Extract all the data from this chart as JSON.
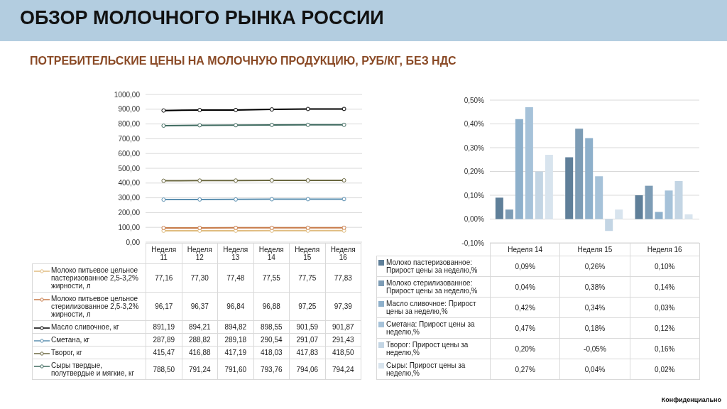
{
  "chart_data": [
    {
      "type": "line",
      "title": "ОБЗОР МОЛОЧНОГО РЫНКА РОССИИ",
      "subtitle": "ПОТРЕБИТЕЛЬСКИЕ ЦЕНЫ НА МОЛОЧНУЮ ПРОДУКЦИЮ, РУБ/КГ, БЕЗ НДС",
      "categories": [
        "Неделя 11",
        "Неделя 12",
        "Неделя 13",
        "Неделя 14",
        "Неделя 15",
        "Неделя 16"
      ],
      "series": [
        {
          "name": "Молоко питьевое цельное пастеризованное 2,5-3,2% жирности, л",
          "color": "#e0bc80",
          "values": [
            77.16,
            77.3,
            77.48,
            77.55,
            77.75,
            77.83
          ],
          "value_labels": [
            "77,16",
            "77,30",
            "77,48",
            "77,55",
            "77,75",
            "77,83"
          ]
        },
        {
          "name": "Молоко питьевое цельное стерилизованное 2,5-3,2% жирности, л",
          "color": "#c77a48",
          "values": [
            96.17,
            96.37,
            96.84,
            96.88,
            97.25,
            97.39
          ],
          "value_labels": [
            "96,17",
            "96,37",
            "96,84",
            "96,88",
            "97,25",
            "97,39"
          ]
        },
        {
          "name": "Масло сливочное, кг",
          "color": "#000000",
          "values": [
            891.19,
            894.21,
            894.82,
            898.55,
            901.59,
            901.87
          ],
          "value_labels": [
            "891,19",
            "894,21",
            "894,82",
            "898,55",
            "901,59",
            "901,87"
          ]
        },
        {
          "name": "Сметана, кг",
          "color": "#5b8fb0",
          "values": [
            287.89,
            288.82,
            289.18,
            290.54,
            291.07,
            291.43
          ],
          "value_labels": [
            "287,89",
            "288,82",
            "289,18",
            "290,54",
            "291,07",
            "291,43"
          ]
        },
        {
          "name": "Творог, кг",
          "color": "#6b6840",
          "values": [
            415.47,
            416.88,
            417.19,
            418.03,
            417.83,
            418.5
          ],
          "value_labels": [
            "415,47",
            "416,88",
            "417,19",
            "418,03",
            "417,83",
            "418,50"
          ]
        },
        {
          "name": "Сыры твердые, полутвердые и мягкие, кг",
          "color": "#3f6b60",
          "values": [
            788.5,
            791.24,
            791.6,
            793.76,
            794.06,
            794.24
          ],
          "value_labels": [
            "788,50",
            "791,24",
            "791,60",
            "793,76",
            "794,06",
            "794,24"
          ]
        }
      ],
      "ylim": [
        0,
        1000
      ],
      "yticks": [
        {
          "value": 0,
          "label": "0,00"
        },
        {
          "value": 100,
          "label": "100,00"
        },
        {
          "value": 200,
          "label": "200,00"
        },
        {
          "value": 300,
          "label": "300,00"
        },
        {
          "value": 400,
          "label": "400,00"
        },
        {
          "value": 500,
          "label": "500,00"
        },
        {
          "value": 600,
          "label": "600,00"
        },
        {
          "value": 700,
          "label": "700,00"
        },
        {
          "value": 800,
          "label": "800,00"
        },
        {
          "value": 900,
          "label": "900,00"
        },
        {
          "value": 1000,
          "label": "1000,00"
        }
      ],
      "grid": "y",
      "marker": "circle",
      "legend": "bottom"
    },
    {
      "type": "bar",
      "categories": [
        "Неделя 14",
        "Неделя 15",
        "Неделя 16"
      ],
      "series": [
        {
          "name": "Молоко пастеризованное: Прирост цены за неделю,%",
          "color": "#5f7f99",
          "values": [
            0.09,
            0.26,
            0.1
          ],
          "value_labels": [
            "0,09%",
            "0,26%",
            "0,10%"
          ]
        },
        {
          "name": "Молоко стерилизованное: Прирост цены за неделю,%",
          "color": "#7d9cb5",
          "values": [
            0.04,
            0.38,
            0.14
          ],
          "value_labels": [
            "0,04%",
            "0,38%",
            "0,14%"
          ]
        },
        {
          "name": "Масло сливочное: Прирост цены за неделю,%",
          "color": "#8eb0cb",
          "values": [
            0.42,
            0.34,
            0.03
          ],
          "value_labels": [
            "0,42%",
            "0,34%",
            "0,03%"
          ]
        },
        {
          "name": "Сметана: Прирост цены за неделю,%",
          "color": "#a6c2d9",
          "values": [
            0.47,
            0.18,
            0.12
          ],
          "value_labels": [
            "0,47%",
            "0,18%",
            "0,12%"
          ]
        },
        {
          "name": "Творог: Прирост цены за неделю,%",
          "color": "#c3d5e4",
          "values": [
            0.2,
            -0.05,
            0.16
          ],
          "value_labels": [
            "0,20%",
            "-0,05%",
            "0,16%"
          ]
        },
        {
          "name": "Сыры: Прирост цены за неделю,%",
          "color": "#d8e4ee",
          "values": [
            0.27,
            0.04,
            0.02
          ],
          "value_labels": [
            "0,27%",
            "0,04%",
            "0,02%"
          ]
        }
      ],
      "ylim": [
        -0.1,
        0.5
      ],
      "yticks": [
        {
          "value": -0.1,
          "label": "-0,10%"
        },
        {
          "value": 0,
          "label": "0,00%"
        },
        {
          "value": 0.1,
          "label": "0,10%"
        },
        {
          "value": 0.2,
          "label": "0,20%"
        },
        {
          "value": 0.3,
          "label": "0,30%"
        },
        {
          "value": 0.4,
          "label": "0,40%"
        },
        {
          "value": 0.5,
          "label": "0,50%"
        }
      ],
      "grid": "y",
      "legend": "bottom",
      "annotations": [
        "Конфиденциально"
      ]
    }
  ]
}
